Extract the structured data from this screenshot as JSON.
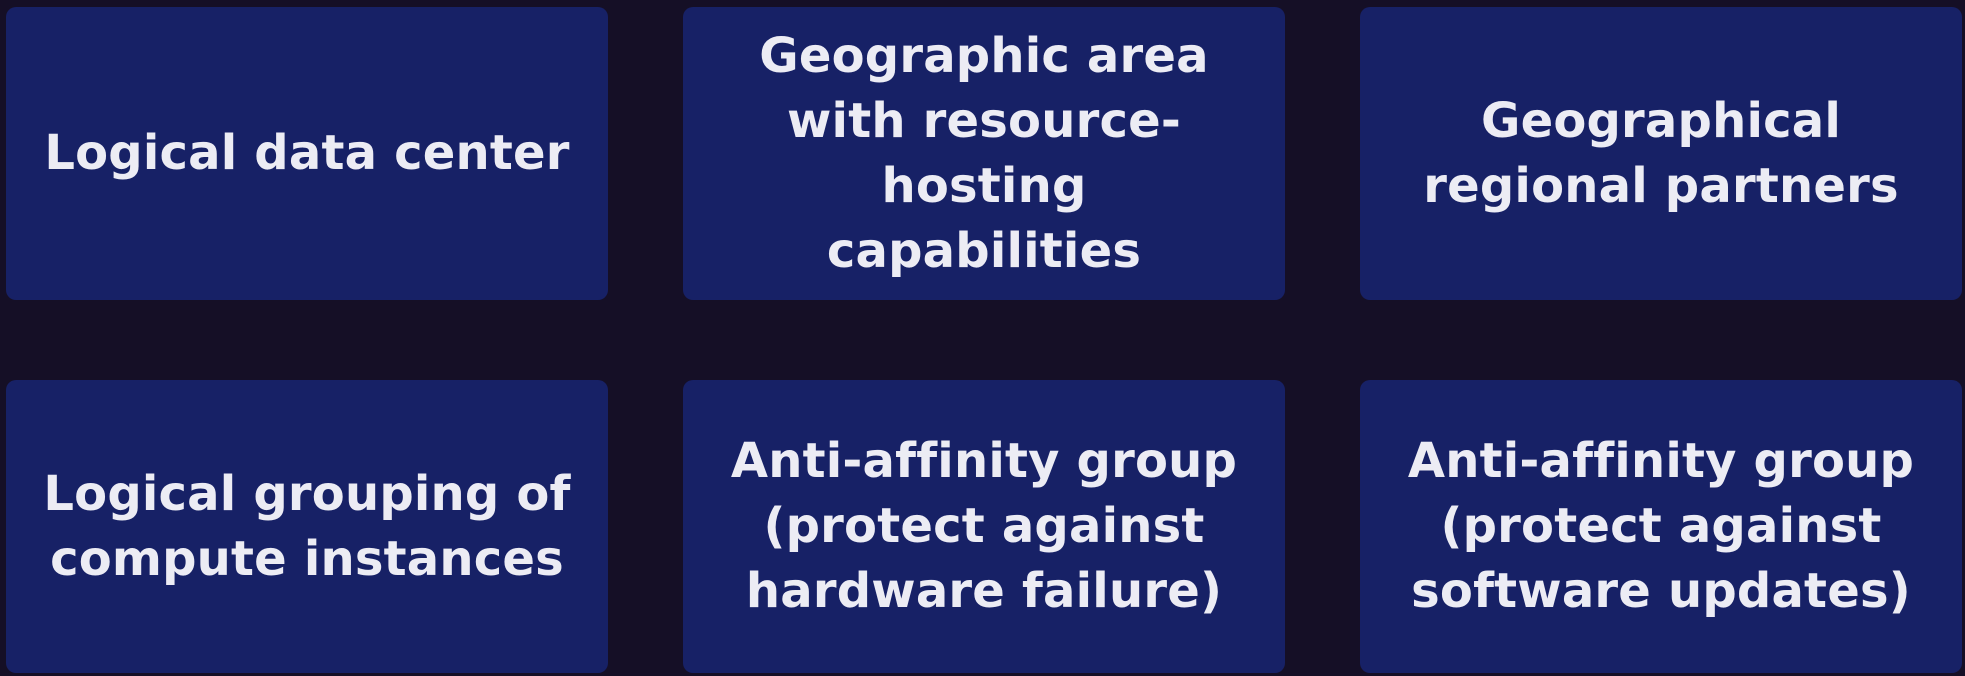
{
  "colors": {
    "background": "#150f26",
    "card": "#172166",
    "text": "#ececf4"
  },
  "cards": [
    {
      "label": "Logical data center"
    },
    {
      "label": "Geographic area with resource-hosting capabilities"
    },
    {
      "label": "Geographical regional partners"
    },
    {
      "label": "Logical grouping of compute instances"
    },
    {
      "label": "Anti-affinity group (protect against hardware failure)"
    },
    {
      "label": "Anti-affinity group (protect against software updates)"
    }
  ]
}
